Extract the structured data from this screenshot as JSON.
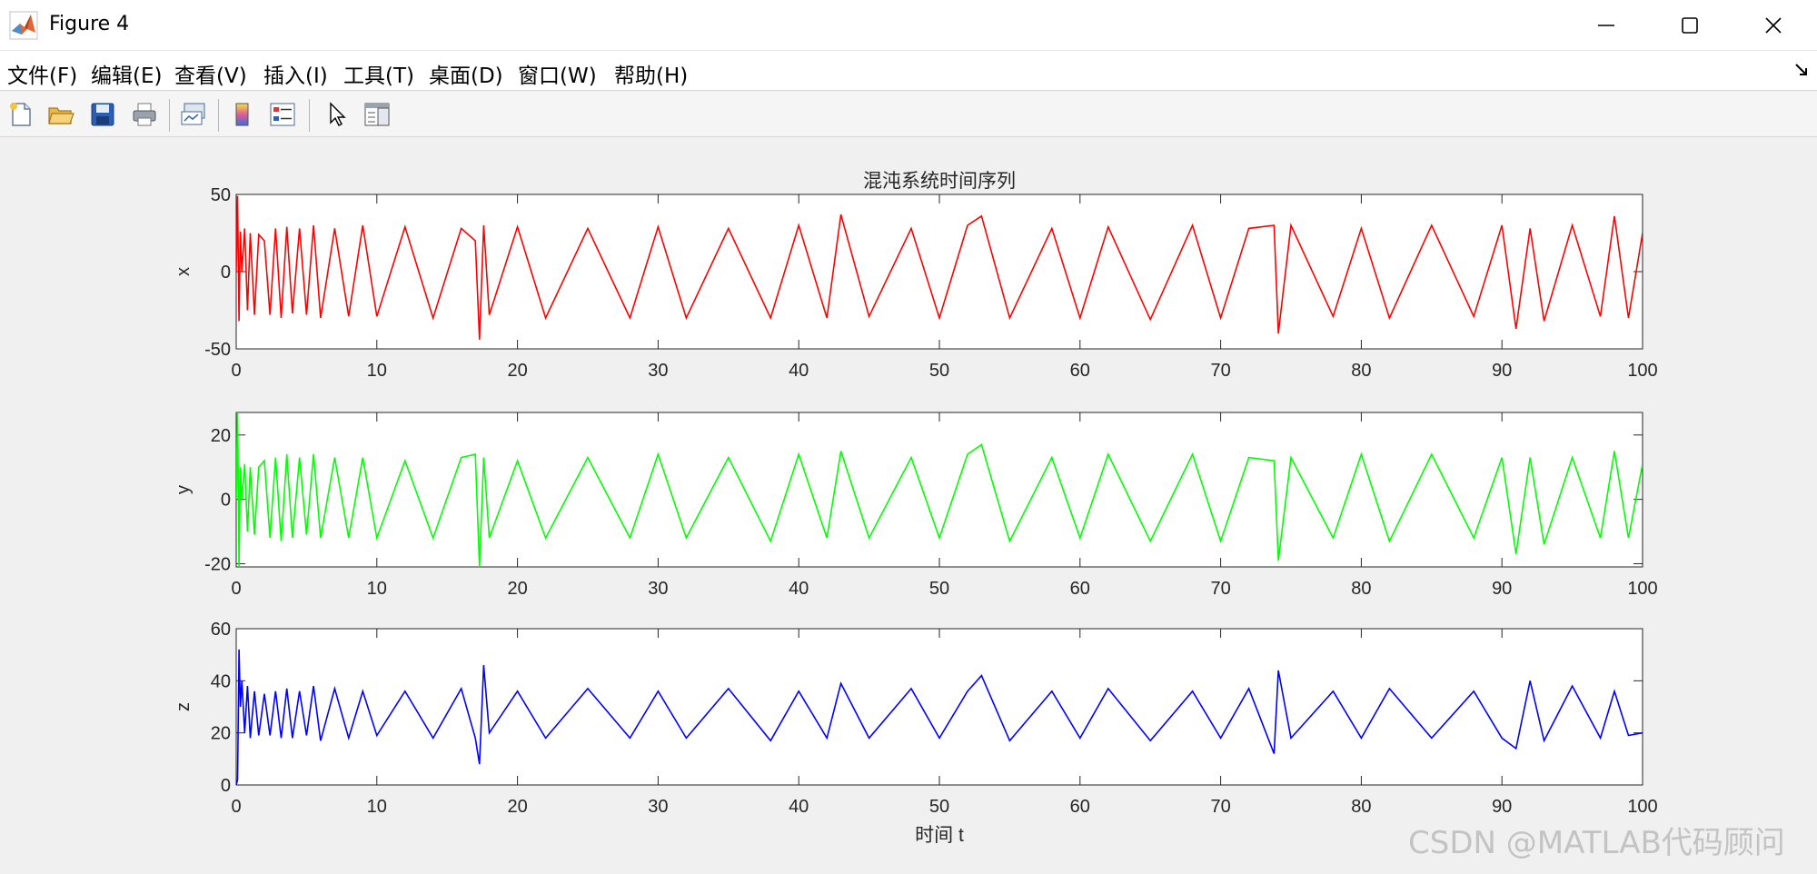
{
  "window": {
    "title": "Figure 4"
  },
  "menu": {
    "items": [
      "文件(F)",
      "编辑(E)",
      "查看(V)",
      "插入(I)",
      "工具(T)",
      "桌面(D)",
      "窗口(W)",
      "帮助(H)"
    ]
  },
  "toolbar": {
    "icons": [
      "new-figure-icon",
      "open-file-icon",
      "save-icon",
      "print-icon",
      "link-plot-icon",
      "colorbar-icon",
      "legend-icon",
      "pointer-icon",
      "property-editor-icon"
    ]
  },
  "watermark": "CSDN @MATLAB代码顾问",
  "colors": {
    "x_series": "#ff0000",
    "y_series": "#00ff00",
    "z_series": "#0000ff"
  },
  "chart_data": [
    {
      "type": "line",
      "title": "混沌系统时间序列",
      "xlabel": "",
      "ylabel": "x",
      "xlim": [
        0,
        100
      ],
      "ylim": [
        -50,
        50
      ],
      "xticks": [
        0,
        10,
        20,
        30,
        40,
        50,
        60,
        70,
        80,
        90,
        100
      ],
      "yticks": [
        -50,
        0,
        50
      ],
      "color": "#ff0000",
      "series": [
        {
          "x": [
            0,
            0.1,
            0.2,
            0.3,
            0.4,
            0.6,
            0.8,
            1.0,
            1.3,
            1.6,
            2.0,
            2.4,
            2.8,
            3.2,
            3.6,
            4.0,
            4.5,
            5.0,
            5.5,
            6.0,
            7.0,
            8.0,
            9.0,
            10,
            12,
            14,
            16,
            17.0,
            17.3,
            17.6,
            18,
            20,
            22,
            25,
            28,
            30,
            32,
            35,
            38,
            40,
            42,
            43,
            45,
            48,
            50,
            52,
            53,
            55,
            58,
            60,
            62,
            65,
            68,
            70,
            72,
            73.8,
            74.1,
            75,
            78,
            80,
            82,
            85,
            88,
            90,
            91,
            92,
            93,
            95,
            97,
            98,
            99,
            100
          ],
          "y": [
            0,
            49,
            -32,
            26,
            0,
            28,
            -25,
            25,
            -28,
            24,
            20,
            -28,
            28,
            -30,
            29,
            -27,
            28,
            -28,
            30,
            -30,
            28,
            -29,
            30,
            -29,
            29,
            -30,
            28,
            20,
            -44,
            30,
            -28,
            29,
            -30,
            28,
            -30,
            29,
            -30,
            28,
            -30,
            30,
            -30,
            37,
            -29,
            28,
            -30,
            30,
            36,
            -30,
            28,
            -30,
            29,
            -31,
            30,
            -30,
            28,
            30,
            -40,
            30,
            -29,
            28,
            -30,
            30,
            -29,
            30,
            -37,
            28,
            -32,
            30,
            -29,
            36,
            -30,
            25
          ]
        }
      ]
    },
    {
      "type": "line",
      "title": "",
      "xlabel": "",
      "ylabel": "y",
      "xlim": [
        0,
        100
      ],
      "ylim": [
        -21,
        27
      ],
      "xticks": [
        0,
        10,
        20,
        30,
        40,
        50,
        60,
        70,
        80,
        90,
        100
      ],
      "yticks": [
        -20,
        0,
        20
      ],
      "color": "#00ff00",
      "series": [
        {
          "x": [
            0,
            0.1,
            0.2,
            0.3,
            0.4,
            0.6,
            0.8,
            1.0,
            1.3,
            1.6,
            2.0,
            2.4,
            2.8,
            3.2,
            3.6,
            4.0,
            4.5,
            5.0,
            5.5,
            6.0,
            7.0,
            8.0,
            9.0,
            10,
            12,
            14,
            16,
            17.0,
            17.3,
            17.6,
            18,
            20,
            22,
            25,
            28,
            30,
            32,
            35,
            38,
            40,
            42,
            43,
            45,
            48,
            50,
            52,
            53,
            55,
            58,
            60,
            62,
            65,
            68,
            70,
            72,
            73.8,
            74.1,
            75,
            78,
            80,
            82,
            85,
            88,
            90,
            91,
            92,
            93,
            95,
            97,
            98,
            99,
            100
          ],
          "y": [
            0,
            27,
            -21,
            10,
            0,
            11,
            -10,
            10,
            -11,
            10,
            12,
            -12,
            13,
            -13,
            14,
            -12,
            13,
            -11,
            14,
            -12,
            13,
            -12,
            13,
            -12,
            12,
            -12,
            13,
            14,
            -21,
            13,
            -12,
            12,
            -12,
            13,
            -12,
            14,
            -12,
            13,
            -13,
            14,
            -12,
            15,
            -12,
            13,
            -12,
            14,
            17,
            -13,
            13,
            -12,
            14,
            -13,
            14,
            -13,
            13,
            12,
            -19,
            13,
            -12,
            14,
            -13,
            14,
            -12,
            13,
            -17,
            13,
            -14,
            13,
            -12,
            15,
            -12,
            11
          ]
        }
      ]
    },
    {
      "type": "line",
      "title": "",
      "xlabel": "时间 t",
      "ylabel": "z",
      "xlim": [
        0,
        100
      ],
      "ylim": [
        0,
        60
      ],
      "xticks": [
        0,
        10,
        20,
        30,
        40,
        50,
        60,
        70,
        80,
        90,
        100
      ],
      "yticks": [
        0,
        20,
        40,
        60
      ],
      "color": "#0000ff",
      "series": [
        {
          "x": [
            0,
            0.1,
            0.2,
            0.3,
            0.4,
            0.6,
            0.8,
            1.0,
            1.3,
            1.6,
            2.0,
            2.4,
            2.8,
            3.2,
            3.6,
            4.0,
            4.5,
            5.0,
            5.5,
            6.0,
            7.0,
            8.0,
            9.0,
            10,
            12,
            14,
            16,
            17.0,
            17.3,
            17.6,
            18,
            20,
            22,
            25,
            28,
            30,
            32,
            35,
            38,
            40,
            42,
            43,
            45,
            48,
            50,
            52,
            53,
            55,
            58,
            60,
            62,
            65,
            68,
            70,
            72,
            73.8,
            74.1,
            75,
            78,
            80,
            82,
            85,
            88,
            90,
            91,
            92,
            93,
            95,
            97,
            98,
            99,
            100
          ],
          "y": [
            0,
            2,
            52,
            30,
            40,
            20,
            38,
            18,
            36,
            19,
            35,
            19,
            36,
            18,
            37,
            18,
            36,
            19,
            38,
            17,
            37,
            18,
            36,
            19,
            36,
            18,
            37,
            18,
            8,
            46,
            20,
            36,
            18,
            37,
            18,
            36,
            18,
            37,
            17,
            36,
            18,
            39,
            18,
            37,
            18,
            36,
            42,
            17,
            36,
            18,
            37,
            17,
            36,
            18,
            37,
            12,
            44,
            18,
            36,
            18,
            37,
            18,
            36,
            18,
            14,
            40,
            17,
            38,
            18,
            36,
            19,
            20
          ]
        }
      ]
    }
  ]
}
